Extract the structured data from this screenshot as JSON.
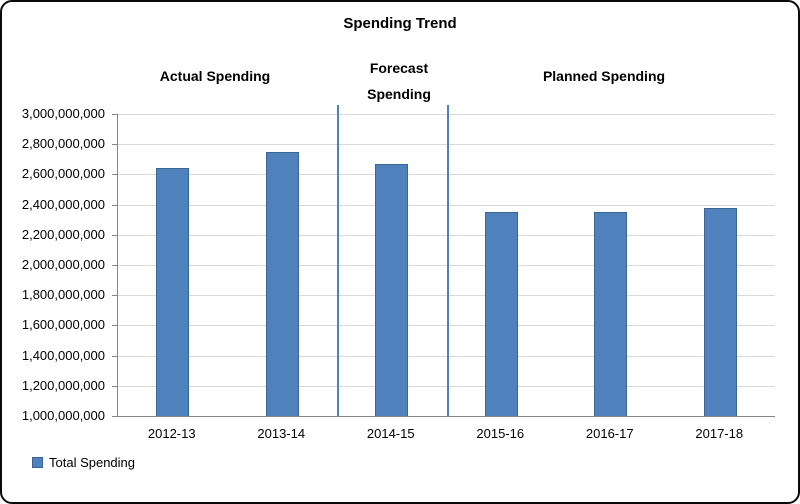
{
  "chart_data": {
    "type": "bar",
    "title": "Spending Trend",
    "xlabel": "",
    "ylabel": "",
    "categories": [
      "2012-13",
      "2013-14",
      "2014-15",
      "2015-16",
      "2016-17",
      "2017-18"
    ],
    "series": [
      {
        "name": "Total Spending",
        "values": [
          2640000000,
          2750000000,
          2670000000,
          2350000000,
          2350000000,
          2380000000
        ]
      }
    ],
    "ylim": [
      1000000000,
      3000000000
    ],
    "ytick_step": 200000000,
    "ytick_labels": [
      "1,000,000,000",
      "1,200,000,000",
      "1,400,000,000",
      "1,600,000,000",
      "1,800,000,000",
      "2,000,000,000",
      "2,200,000,000",
      "2,400,000,000",
      "2,600,000,000",
      "2,800,000,000",
      "3,000,000,000"
    ],
    "grid": true,
    "legend_position": "bottom-left",
    "annotations": [
      {
        "text": "Actual Spending",
        "covers_categories": [
          "2012-13",
          "2013-14"
        ]
      },
      {
        "text": "Forecast Spending",
        "covers_categories": [
          "2014-15"
        ]
      },
      {
        "text": "Planned Spending",
        "covers_categories": [
          "2015-16",
          "2016-17",
          "2017-18"
        ]
      }
    ],
    "dividers_at_category_boundaries": [
      2,
      3
    ],
    "colors": {
      "bar_fill": "#4F81BD",
      "bar_border": "#3A6593",
      "divider": "#4F81BD",
      "gridline": "#D9D9D9",
      "axis": "#868686",
      "text": "#000000"
    }
  },
  "legend": {
    "items": [
      {
        "label": "Total Spending",
        "swatch_color": "#4F81BD"
      }
    ]
  }
}
